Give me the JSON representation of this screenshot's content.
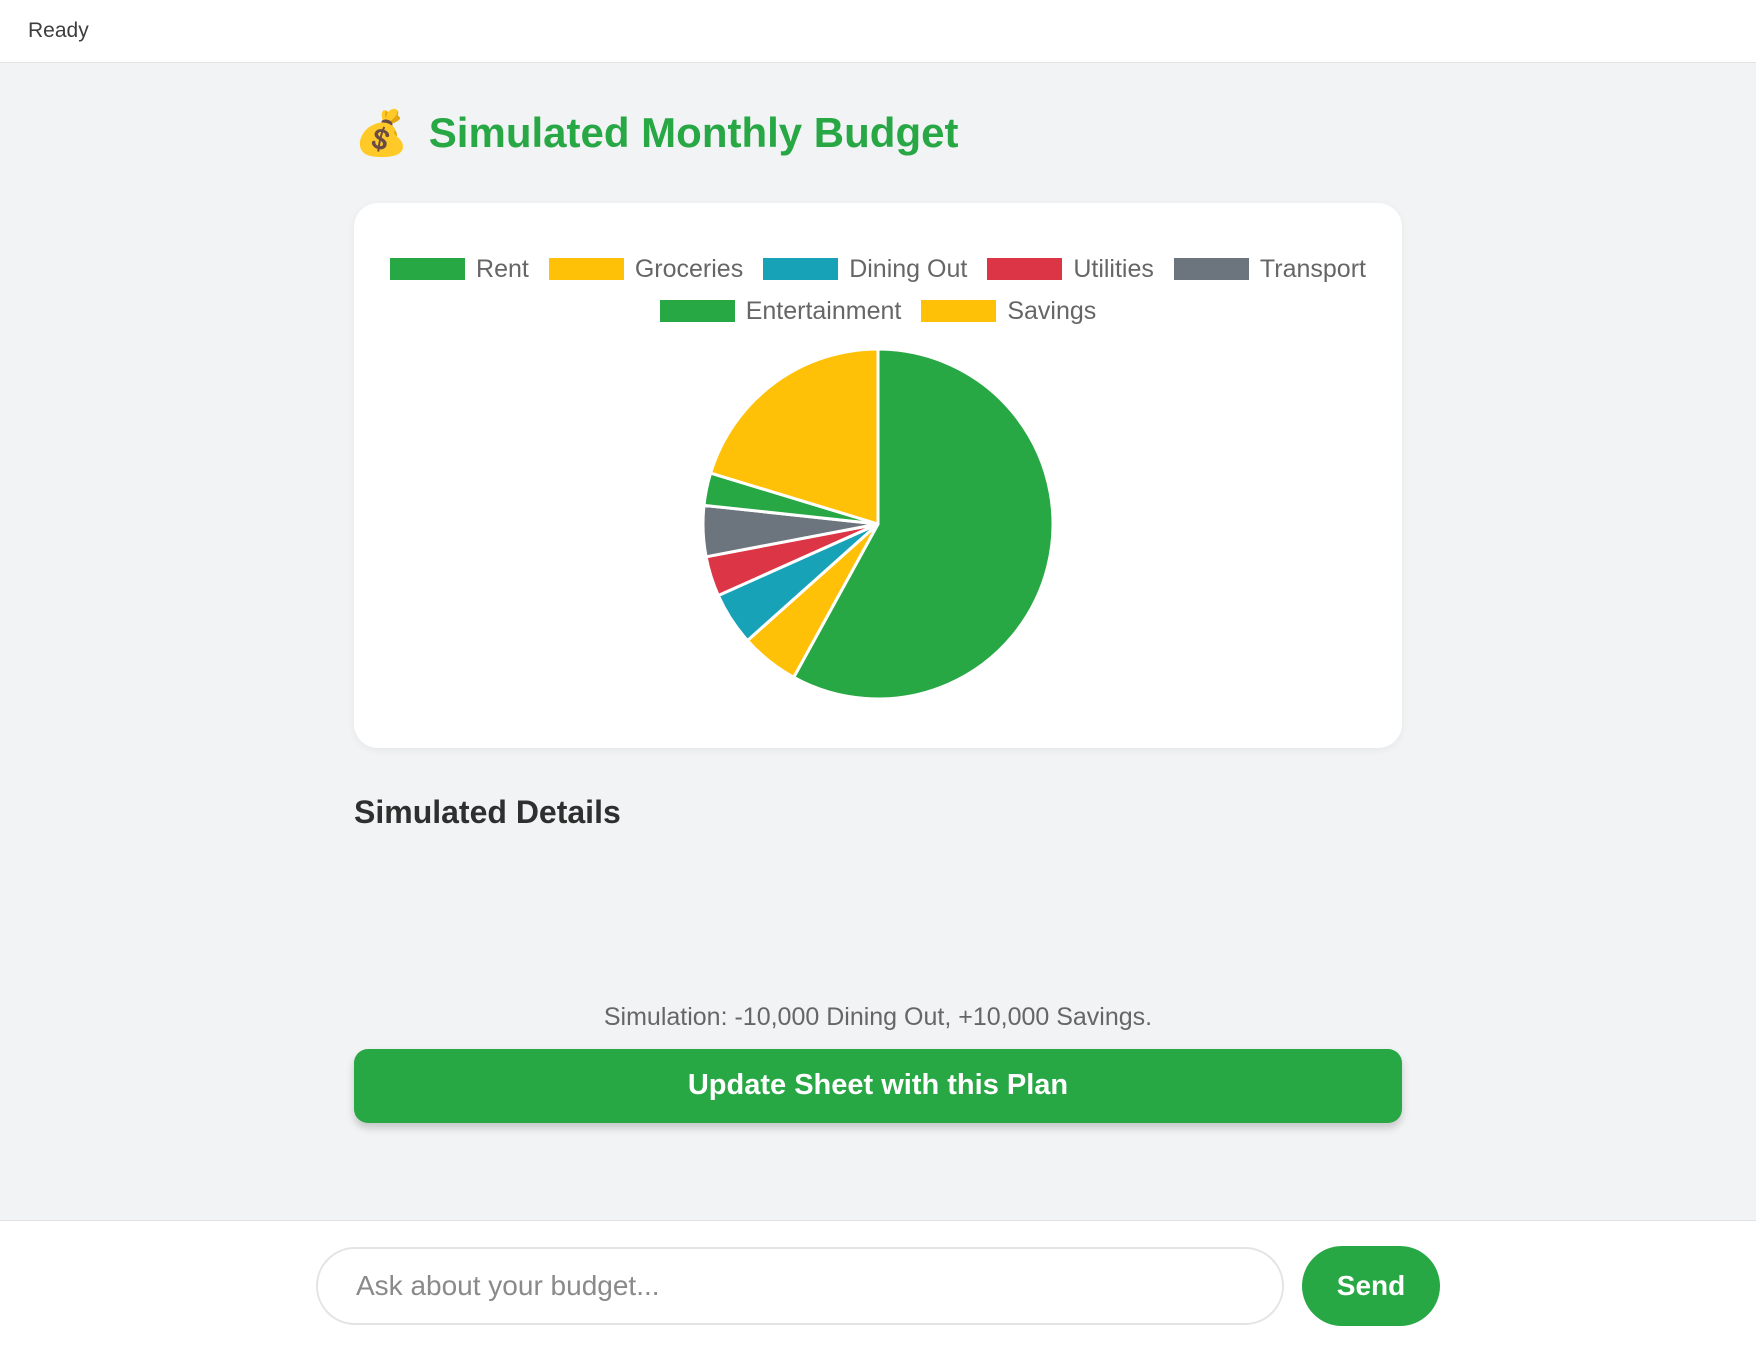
{
  "topbar": {
    "status": "Ready"
  },
  "header": {
    "icon": "💰",
    "title": "Simulated Monthly Budget"
  },
  "chart_data": {
    "type": "pie",
    "title": "Simulated Monthly Budget",
    "labels": [
      "Rent",
      "Groceries",
      "Dining Out",
      "Utilities",
      "Transport",
      "Entertainment",
      "Savings"
    ],
    "values_percent": [
      58.0,
      5.4,
      4.9,
      3.7,
      4.7,
      3.0,
      20.3
    ],
    "colors": [
      "#28a745",
      "#ffc107",
      "#17a2b8",
      "#dc3545",
      "#6c757d",
      "#28a745",
      "#ffc107"
    ],
    "legend_position": "top",
    "legend_rows": [
      5,
      2
    ]
  },
  "details": {
    "heading": "Simulated Details"
  },
  "simulation": {
    "note": "Simulation: -10,000 Dining Out, +10,000 Savings.",
    "button_label": "Update Sheet with this Plan"
  },
  "chat": {
    "input_placeholder": "Ask about your budget...",
    "send_label": "Send"
  },
  "colors": {
    "accent_green": "#28a745",
    "yellow": "#ffc107",
    "teal": "#17a2b8",
    "red": "#dc3545",
    "gray": "#6c757d",
    "page_background": "#f1f3f4"
  }
}
